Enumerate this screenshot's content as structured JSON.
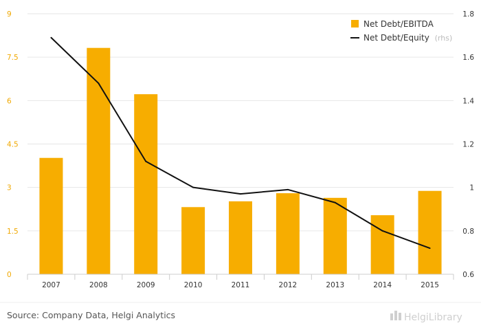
{
  "chart_data": {
    "type": "bar",
    "categories": [
      "2007",
      "2008",
      "2009",
      "2010",
      "2011",
      "2012",
      "2013",
      "2014",
      "2015"
    ],
    "series": [
      {
        "name": "Net Debt/EBITDA",
        "type": "bar",
        "axis": "left",
        "color": "#f7ad00",
        "values": [
          4.02,
          7.82,
          6.22,
          2.32,
          2.52,
          2.8,
          2.64,
          2.04,
          2.88
        ]
      },
      {
        "name": "Net Debt/Equity",
        "name_suffix": "(rhs)",
        "type": "line",
        "axis": "right",
        "color": "#111111",
        "values": [
          1.69,
          1.48,
          1.12,
          1.0,
          0.97,
          0.99,
          0.93,
          0.8,
          0.72
        ]
      }
    ],
    "left_axis": {
      "min": 0,
      "max": 9,
      "ticks": [
        "0",
        "1.5",
        "3",
        "4.5",
        "6",
        "7.5",
        "9"
      ]
    },
    "right_axis": {
      "min": 0.6,
      "max": 1.8,
      "ticks": [
        "0.6",
        "0.8",
        "1",
        "1.2",
        "1.4",
        "1.6",
        "1.8"
      ]
    },
    "grid": true,
    "legend_position": "top-right"
  },
  "footer": {
    "source": "Source: Company Data, Helgi Analytics",
    "logo": "HelgiLibrary"
  }
}
